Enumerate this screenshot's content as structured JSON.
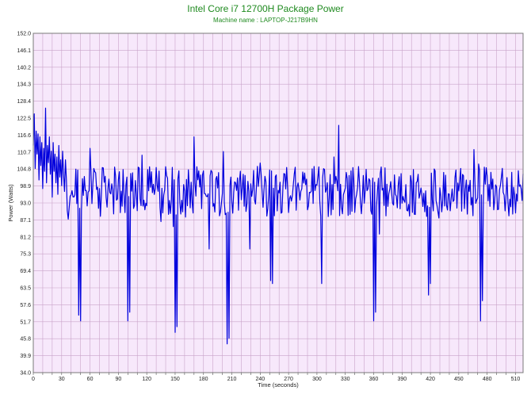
{
  "chart_data": {
    "type": "line",
    "title": "Intel Core i7  12700H Package Power",
    "subtitle": "Machine name : LAPTOP-J217B9HN",
    "xlabel": "Time (seconds)",
    "ylabel": "Power (Watts)",
    "xlim": [
      0,
      518
    ],
    "ylim": [
      34.0,
      152.0
    ],
    "x_ticks": [
      0,
      30,
      60,
      90,
      120,
      150,
      180,
      210,
      240,
      270,
      300,
      330,
      360,
      390,
      420,
      450,
      480,
      510
    ],
    "y_ticks": [
      "34.0",
      "39.9",
      "45.8",
      "51.7",
      "57.6",
      "63.5",
      "69.4",
      "75.3",
      "81.2",
      "87.1",
      "93.0",
      "98.9",
      "104.8",
      "110.7",
      "116.6",
      "122.5",
      "128.4",
      "134.3",
      "140.2",
      "146.1",
      "152.0"
    ],
    "grid": true,
    "background_color": "#f7e8fb",
    "grid_color": "#c9a3c9",
    "line_color": "#0000dd",
    "title_color": "#1f8a1f",
    "series": [
      {
        "name": "",
        "baseline": 97,
        "noise": 5.5,
        "points": [
          [
            0,
            113
          ],
          [
            1,
            124
          ],
          [
            2,
            105
          ],
          [
            3,
            118
          ],
          [
            4,
            110
          ],
          [
            5,
            117
          ],
          [
            6,
            101
          ],
          [
            7,
            116
          ],
          [
            8,
            106
          ],
          [
            9,
            114
          ],
          [
            10,
            98
          ],
          [
            11,
            112
          ],
          [
            12,
            104
          ],
          [
            13,
            126
          ],
          [
            14,
            100
          ],
          [
            15,
            113
          ],
          [
            16,
            107
          ],
          [
            17,
            116
          ],
          [
            18,
            103
          ],
          [
            19,
            111
          ],
          [
            20,
            95
          ],
          [
            21,
            114
          ],
          [
            22,
            104
          ],
          [
            23,
            110
          ],
          [
            24,
            100
          ],
          [
            25,
            109
          ],
          [
            26,
            96
          ],
          [
            27,
            113
          ],
          [
            28,
            102
          ],
          [
            29,
            108
          ],
          [
            30,
            99
          ],
          [
            31,
            111
          ],
          [
            32,
            103
          ],
          [
            33,
            97
          ],
          [
            34,
            108
          ],
          [
            35,
            101
          ],
          [
            48,
            54
          ],
          [
            50,
            52
          ],
          [
            60,
            112
          ],
          [
            64,
            105
          ],
          [
            100,
            52
          ],
          [
            102,
            55
          ],
          [
            150,
            48
          ],
          [
            152,
            50
          ],
          [
            170,
            116
          ],
          [
            186,
            77
          ],
          [
            205,
            44
          ],
          [
            207,
            46
          ],
          [
            229,
            77
          ],
          [
            251,
            66
          ],
          [
            253,
            65
          ],
          [
            305,
            65
          ],
          [
            318,
            109
          ],
          [
            323,
            120
          ],
          [
            360,
            52
          ],
          [
            362,
            55
          ],
          [
            418,
            61
          ],
          [
            420,
            65
          ],
          [
            473,
            52
          ],
          [
            475,
            59
          ]
        ]
      }
    ]
  }
}
